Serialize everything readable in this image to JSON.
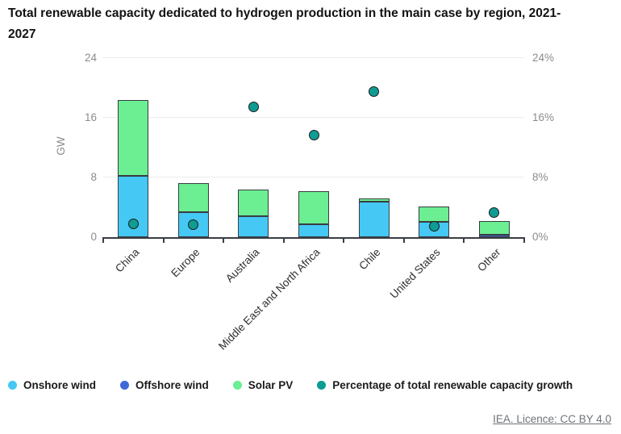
{
  "title": "Total renewable capacity dedicated to hydrogen production in the main case by region, 2021-2027",
  "footer": {
    "source_label": "IEA. Licence: CC BY 4.0"
  },
  "chart_data": {
    "type": "bar",
    "subtype": "stacked-bars-with-scatter-overlay",
    "title": "Total renewable capacity dedicated to hydrogen production in the main case by region, 2021-2027",
    "categories": [
      "China",
      "Europe",
      "Australia",
      "Middle East and North Africa",
      "Chile",
      "United States",
      "Other"
    ],
    "series": [
      {
        "name": "Onshore wind",
        "type": "bar",
        "color": "#45C8F3",
        "values": [
          8.2,
          3.4,
          2.8,
          1.7,
          4.8,
          2.1,
          0
        ]
      },
      {
        "name": "Offshore wind",
        "type": "bar",
        "color": "#3F68D7",
        "values": [
          0,
          0,
          0,
          0,
          0,
          0,
          0.3
        ]
      },
      {
        "name": "Solar PV",
        "type": "bar",
        "color": "#6CEE92",
        "values": [
          10.2,
          3.8,
          3.6,
          4.5,
          0.4,
          2.0,
          1.9
        ]
      },
      {
        "name": "Percentage of total renewable capacity growth",
        "type": "scatter",
        "color": "#0F9C92",
        "values": [
          1.8,
          1.7,
          17.5,
          13.7,
          19.5,
          1.5,
          3.3
        ]
      }
    ],
    "left_axis": {
      "label": "GW",
      "min": 0,
      "max": 24,
      "tick_values": [
        0,
        8,
        16,
        24
      ],
      "ticks": [
        "0",
        "8",
        "16",
        "24"
      ]
    },
    "right_axis": {
      "min": 0,
      "max": 24,
      "tick_values": [
        0,
        8,
        16,
        24
      ],
      "ticks": [
        "0%",
        "8%",
        "16%",
        "24%"
      ]
    },
    "grid": true,
    "legend_position": "bottom"
  }
}
